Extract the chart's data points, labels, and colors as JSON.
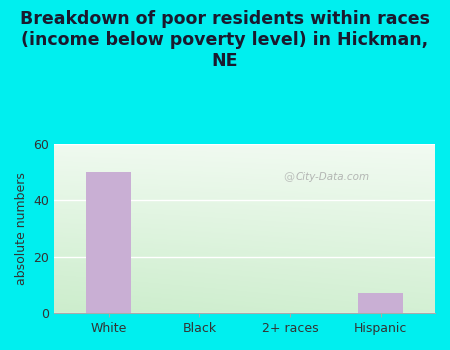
{
  "categories": [
    "White",
    "Black",
    "2+ races",
    "Hispanic"
  ],
  "values": [
    50,
    0,
    0,
    7
  ],
  "bar_color": "#c9afd4",
  "title": "Breakdown of poor residents within races\n(income below poverty level) in Hickman,\nNE",
  "ylabel": "absolute numbers",
  "ylim": [
    0,
    60
  ],
  "yticks": [
    0,
    20,
    40,
    60
  ],
  "bg_outer": "#00efef",
  "bg_plot_topleft": "#e8f5e8",
  "bg_plot_topright": "#f5fbf5",
  "bg_plot_bottomleft": "#d0edd0",
  "bg_plot_bottomright": "#eaf5ea",
  "grid_color": "#c8e0c8",
  "watermark": "City-Data.com",
  "title_fontsize": 12.5,
  "ylabel_fontsize": 9,
  "tick_fontsize": 9,
  "title_color": "#1a1a2e"
}
